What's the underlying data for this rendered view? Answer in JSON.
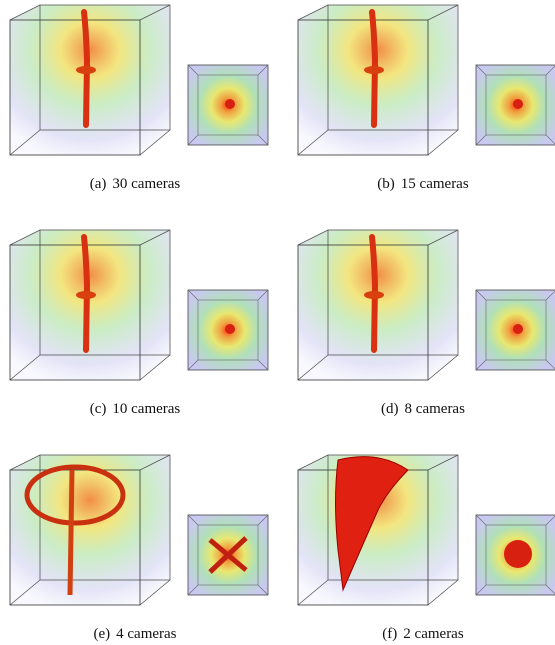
{
  "subfigures": [
    {
      "label": "(a)",
      "caption": "30 cameras"
    },
    {
      "label": "(b)",
      "caption": "15 cameras"
    },
    {
      "label": "(c)",
      "caption": "10 cameras"
    },
    {
      "label": "(d)",
      "caption": "8 cameras"
    },
    {
      "label": "(e)",
      "caption": "4 cameras"
    },
    {
      "label": "(f)",
      "caption": "2 cameras"
    }
  ]
}
